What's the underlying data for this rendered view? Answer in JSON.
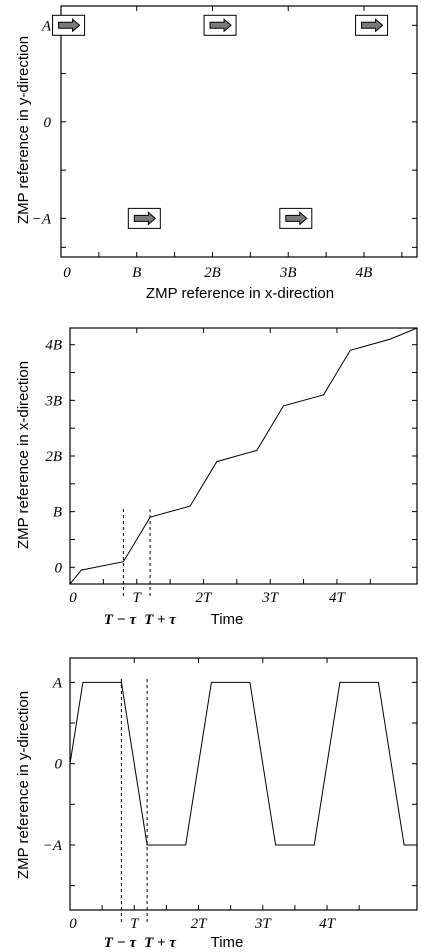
{
  "chart_data": [
    {
      "type": "scatter",
      "xlabel": "ZMP reference in x-direction",
      "ylabel": "ZMP reference in y-direction",
      "xticks": [
        "0",
        "B",
        "2B",
        "3B",
        "4B"
      ],
      "yticks": [
        "A",
        "0",
        "-A"
      ],
      "xlim": [
        0,
        4.7
      ],
      "ylim": [
        -1.4,
        1.2
      ],
      "grid": false,
      "points": [
        {
          "x": 0.1,
          "y": 1
        },
        {
          "x": 1.1,
          "y": -1
        },
        {
          "x": 2.1,
          "y": 1
        },
        {
          "x": 3.1,
          "y": -1
        },
        {
          "x": 4.1,
          "y": 1
        }
      ],
      "marker": "right-arrow-box"
    },
    {
      "type": "line",
      "xlabel": "Time",
      "ylabel": "ZMP reference in x-direction",
      "xticks": [
        "0",
        "T",
        "2T",
        "3T",
        "4T"
      ],
      "yticks": [
        "0",
        "B",
        "2B",
        "3B",
        "4B"
      ],
      "annotations": [
        "T − τ",
        "T + τ"
      ],
      "xlim": [
        0,
        5.2
      ],
      "ylim": [
        -0.3,
        4.3
      ],
      "grid": false,
      "series": [
        {
          "x": [
            0,
            0.17,
            0.8,
            1.2,
            1.8,
            2.2,
            2.8,
            3.2,
            3.8,
            4.2,
            4.8,
            5.2
          ],
          "y": [
            -0.3,
            -0.05,
            0.1,
            0.9,
            1.1,
            1.9,
            2.1,
            2.9,
            3.1,
            3.9,
            4.1,
            4.6
          ]
        }
      ]
    },
    {
      "type": "line",
      "xlabel": "Time",
      "ylabel": "ZMP reference in y-direction",
      "xticks": [
        "0",
        "T",
        "2T",
        "3T",
        "4T"
      ],
      "yticks": [
        "A",
        "0",
        "-A"
      ],
      "annotations": [
        "T − τ",
        "T + τ"
      ],
      "xlim": [
        0,
        5.4
      ],
      "ylim": [
        -1.8,
        1.3
      ],
      "grid": false,
      "series": [
        {
          "x": [
            0,
            0.2,
            0.8,
            1.2,
            1.8,
            2.2,
            2.8,
            3.2,
            3.8,
            4.2,
            4.8,
            5.2,
            5.4
          ],
          "y": [
            0,
            1,
            1,
            -1,
            -1,
            1,
            1,
            -1,
            -1,
            1,
            1,
            -1,
            -1
          ]
        }
      ]
    }
  ]
}
